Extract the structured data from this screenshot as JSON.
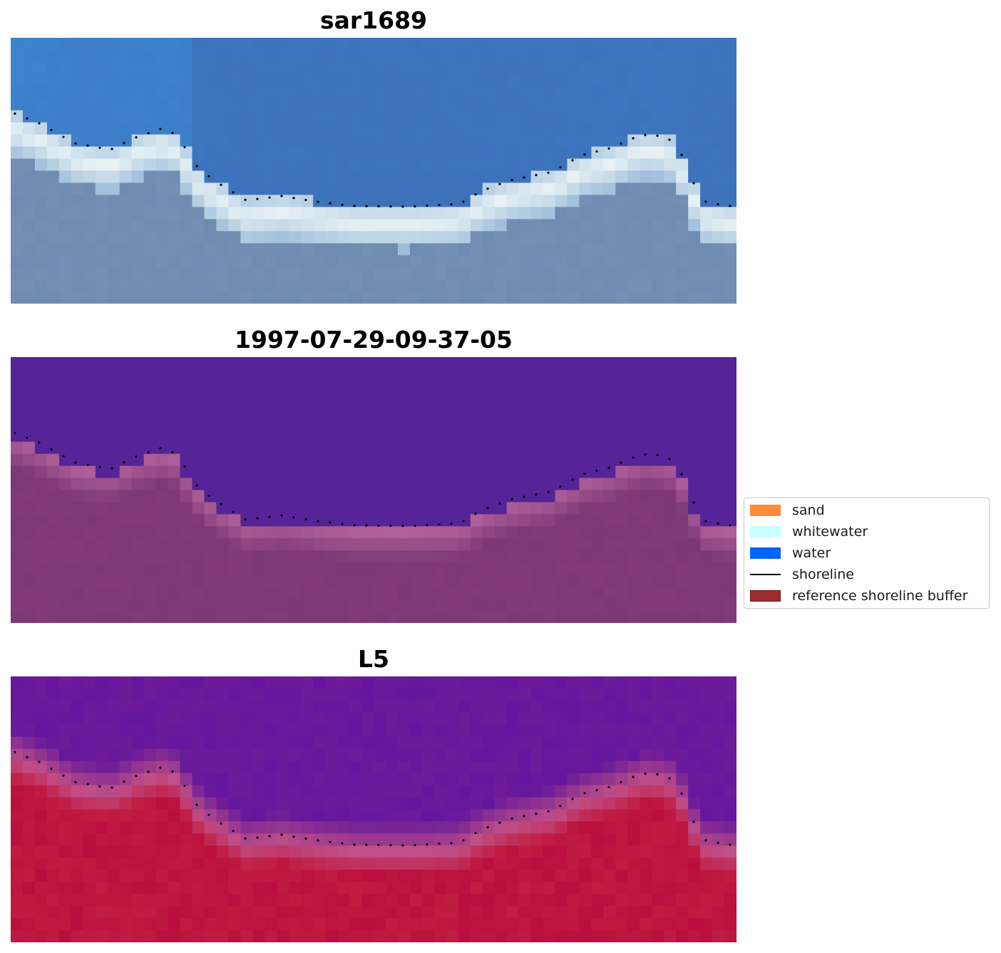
{
  "panels": [
    {
      "title": "sar1689",
      "kind": "rgb"
    },
    {
      "title": "1997-07-29-09-37-05",
      "kind": "classified"
    },
    {
      "title": "L5",
      "kind": "nir"
    }
  ],
  "legend": {
    "items": [
      {
        "label": "sand",
        "type": "patch",
        "color": "#ff8c3c"
      },
      {
        "label": "whitewater",
        "type": "patch",
        "color": "#c8ffff"
      },
      {
        "label": "water",
        "type": "patch",
        "color": "#0064ff"
      },
      {
        "label": "shoreline",
        "type": "line",
        "color": "#000000"
      },
      {
        "label": "reference shoreline buffer",
        "type": "patch",
        "color": "#9b2d2d",
        "edge": "#6e1414"
      }
    ]
  },
  "colors": {
    "water_rgb": "#3d6eb8",
    "deep_water_rgb": "#3ea8f2",
    "whitewater_rgb": "#e8f2f4",
    "land_rgb": "#6f8bb0",
    "classified_water": "#542498",
    "classified_land": "#7c3876",
    "classified_edge": "#b0609a",
    "nir_water": "#6c1c98",
    "nir_edge": "#c05088",
    "nir_land": "#c01c42",
    "shoreline": "#000000"
  }
}
